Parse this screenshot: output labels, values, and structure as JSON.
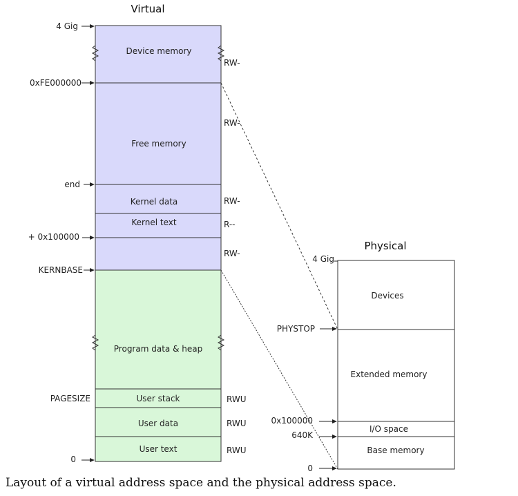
{
  "virtual": {
    "title": "Virtual",
    "regions": {
      "device_memory": "Device memory",
      "free_memory": "Free memory",
      "kernel_data": "Kernel data",
      "kernel_text": "Kernel text",
      "program_data_heap": "Program data & heap",
      "user_stack": "User stack",
      "user_data": "User data",
      "user_text": "User text"
    },
    "permissions": {
      "device": "RW-",
      "free": "RW-",
      "kernel_data": "RW-",
      "kernel_text": "R--",
      "low_kernel": "RW-",
      "user_stack": "RWU",
      "user_data": "RWU",
      "user_text": "RWU"
    },
    "addresses": {
      "top": "4 Gig",
      "devspace": "0xFE000000",
      "end": "end",
      "kernlink": "+ 0x100000",
      "kernbase": "KERNBASE",
      "pagesize": "PAGESIZE",
      "zero": "0"
    },
    "colors": {
      "kernel": "#d9d9fb",
      "user": "#d9f7d9"
    }
  },
  "physical": {
    "title": "Physical",
    "regions": {
      "devices": "Devices",
      "extended_memory": "Extended memory",
      "io_space": "I/O space",
      "base_memory": "Base memory"
    },
    "addresses": {
      "top": "4 Gig",
      "phystop": "PHYSTOP",
      "extmem": "0x100000",
      "k640": "640K",
      "zero": "0"
    }
  },
  "caption": "Layout of a virtual address space and the physical address space."
}
